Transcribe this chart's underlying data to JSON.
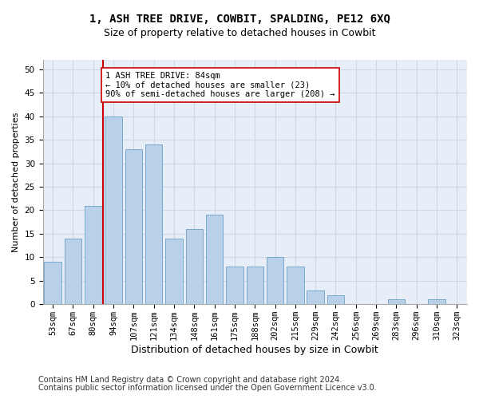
{
  "title": "1, ASH TREE DRIVE, COWBIT, SPALDING, PE12 6XQ",
  "subtitle": "Size of property relative to detached houses in Cowbit",
  "xlabel": "Distribution of detached houses by size in Cowbit",
  "ylabel": "Number of detached properties",
  "categories": [
    "53sqm",
    "67sqm",
    "80sqm",
    "94sqm",
    "107sqm",
    "121sqm",
    "134sqm",
    "148sqm",
    "161sqm",
    "175sqm",
    "188sqm",
    "202sqm",
    "215sqm",
    "229sqm",
    "242sqm",
    "256sqm",
    "269sqm",
    "283sqm",
    "296sqm",
    "310sqm",
    "323sqm"
  ],
  "values": [
    9,
    14,
    21,
    40,
    33,
    34,
    14,
    16,
    19,
    8,
    8,
    10,
    8,
    3,
    2,
    0,
    0,
    1,
    0,
    1,
    0
  ],
  "bar_color": "#b8d0e8",
  "bar_edge_color": "#6ca0c8",
  "vline_x": 2.5,
  "vline_color": "#cc0000",
  "annotation_text": "1 ASH TREE DRIVE: 84sqm\n← 10% of detached houses are smaller (23)\n90% of semi-detached houses are larger (208) →",
  "annotation_box_color": "#ffffff",
  "annotation_box_edge_color": "#cc0000",
  "ylim": [
    0,
    52
  ],
  "yticks": [
    0,
    5,
    10,
    15,
    20,
    25,
    30,
    35,
    40,
    45,
    50
  ],
  "grid_color": "#d0d8e8",
  "background_color": "#e8eef8",
  "footer_line1": "Contains HM Land Registry data © Crown copyright and database right 2024.",
  "footer_line2": "Contains public sector information licensed under the Open Government Licence v3.0.",
  "title_fontsize": 10,
  "subtitle_fontsize": 9,
  "xlabel_fontsize": 9,
  "ylabel_fontsize": 8,
  "tick_fontsize": 7.5,
  "annotation_fontsize": 7.5,
  "footer_fontsize": 7
}
